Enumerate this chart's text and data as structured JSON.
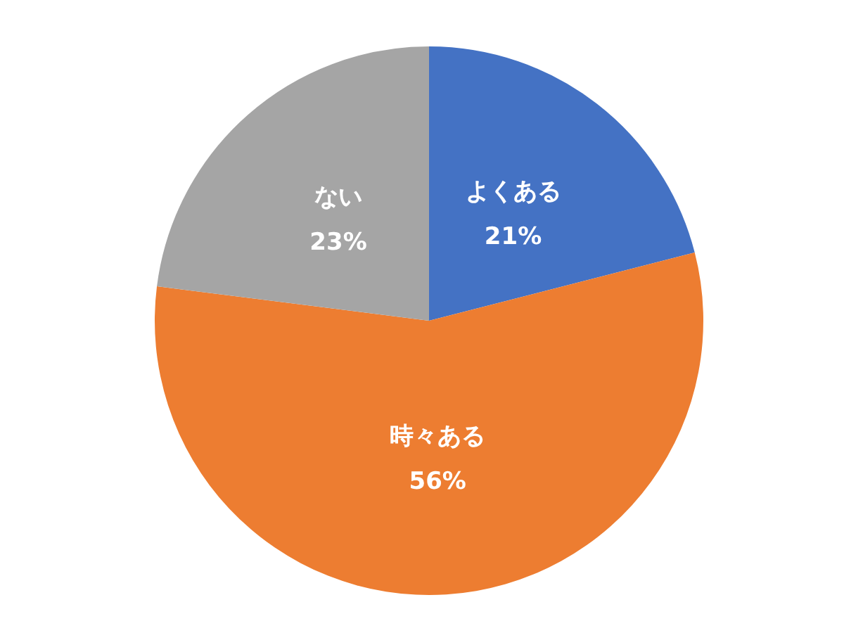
{
  "chart_data": {
    "type": "pie",
    "categories": [
      "よくある",
      "時々ある",
      "ない"
    ],
    "values": [
      21,
      56,
      23
    ],
    "value_labels": [
      "21%",
      "56%",
      "23%"
    ],
    "colors": [
      "#4472c4",
      "#ed7d31",
      "#a5a5a5"
    ],
    "legend": false
  }
}
